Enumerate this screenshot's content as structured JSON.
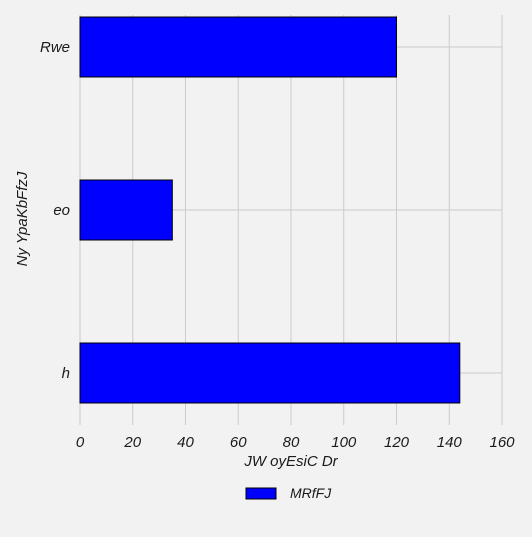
{
  "chart_data": {
    "type": "bar",
    "orientation": "horizontal",
    "categories": [
      "Rwe",
      "eo",
      "h"
    ],
    "series": [
      {
        "name": "MRfFJ",
        "values": [
          120,
          35,
          144
        ],
        "color": "#0000ff"
      }
    ],
    "xlabel": "JW oyEsiC Dr",
    "ylabel": "Ny  YpaKbFfzJ",
    "xlim": [
      0,
      160
    ],
    "xticks": [
      0,
      20,
      40,
      60,
      80,
      100,
      120,
      140,
      160
    ],
    "grid": true,
    "legend_position": "bottom-center"
  },
  "colors": {
    "background": "#f2f2f2",
    "grid": "#cbcbcb",
    "bar_edge": "#000000"
  }
}
